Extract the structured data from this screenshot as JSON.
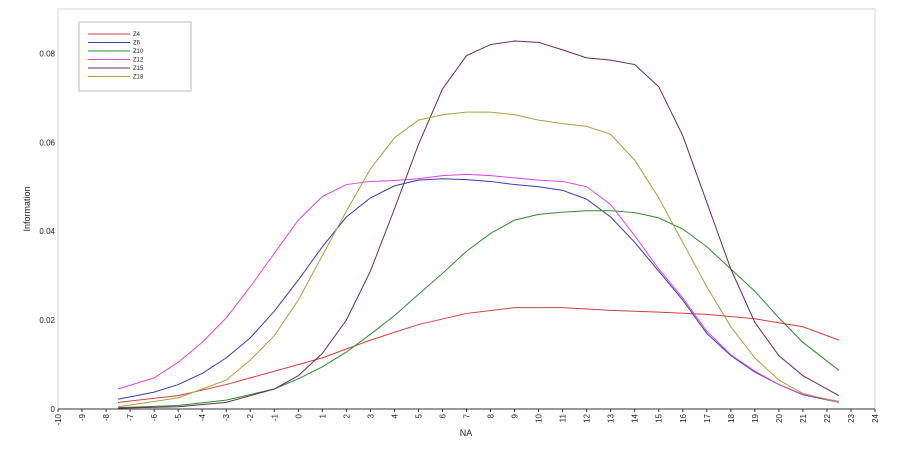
{
  "chart_data": {
    "type": "line",
    "title": "",
    "xlabel": "NA",
    "ylabel": "Information",
    "xlim": [
      -10,
      24
    ],
    "ylim": [
      0,
      0.09
    ],
    "x_ticks": [
      -10,
      -9,
      -8,
      -7,
      -6,
      -5,
      -4,
      -3,
      -2,
      -1,
      0,
      1,
      2,
      3,
      4,
      5,
      6,
      7,
      8,
      9,
      10,
      11,
      12,
      13,
      14,
      15,
      16,
      17,
      18,
      19,
      20,
      21,
      22,
      23,
      24
    ],
    "y_ticks": [
      0,
      0.02,
      0.04,
      0.06,
      0.08
    ],
    "y_tick_labels": [
      "0",
      "0.02",
      "0.04",
      "0.06",
      "0.08"
    ],
    "grid": false,
    "legend_position": "top-left",
    "series": [
      {
        "name": "Z4",
        "color": "#d04040",
        "x": [
          -7.5,
          -5,
          -3,
          -1,
          1,
          3,
          5,
          7,
          9,
          11,
          13,
          15,
          17,
          19,
          21,
          22.5
        ],
        "y": [
          0.0015,
          0.003,
          0.0055,
          0.0085,
          0.0115,
          0.0155,
          0.019,
          0.0215,
          0.0228,
          0.0228,
          0.0222,
          0.0218,
          0.0213,
          0.0203,
          0.0185,
          0.0155
        ]
      },
      {
        "name": "Z6",
        "color": "#3a3aaa",
        "x": [
          -7.5,
          -6,
          -5,
          -4,
          -3,
          -2,
          -1,
          0,
          1,
          2,
          3,
          4,
          5,
          6,
          7,
          8,
          9,
          10,
          11,
          12,
          13,
          14,
          15,
          16,
          17,
          18,
          19,
          20,
          21,
          22.5
        ],
        "y": [
          0.0022,
          0.0038,
          0.0055,
          0.008,
          0.0115,
          0.016,
          0.022,
          0.029,
          0.0365,
          0.0432,
          0.0475,
          0.0502,
          0.0515,
          0.0518,
          0.0516,
          0.0512,
          0.0505,
          0.05,
          0.0492,
          0.0472,
          0.0432,
          0.0375,
          0.031,
          0.0245,
          0.017,
          0.012,
          0.0083,
          0.0055,
          0.0032,
          0.0015
        ]
      },
      {
        "name": "Z10",
        "color": "#2e8b2e",
        "x": [
          -7.5,
          -5,
          -3,
          -1,
          0,
          1,
          2,
          3,
          4,
          5,
          6,
          7,
          8,
          9,
          10,
          11,
          12,
          13,
          14,
          15,
          16,
          17,
          18,
          19,
          20,
          21,
          22.5
        ],
        "y": [
          0.0003,
          0.0008,
          0.002,
          0.0045,
          0.0068,
          0.0095,
          0.0128,
          0.0168,
          0.021,
          0.0258,
          0.0305,
          0.0355,
          0.0395,
          0.0425,
          0.0438,
          0.0443,
          0.0446,
          0.0446,
          0.0442,
          0.043,
          0.0405,
          0.0365,
          0.0315,
          0.0265,
          0.0205,
          0.015,
          0.0087
        ]
      },
      {
        "name": "Z12",
        "color": "#dd44dd",
        "x": [
          -7.5,
          -6,
          -5,
          -4,
          -3,
          -2,
          -1,
          0,
          1,
          2,
          3,
          4,
          5,
          6,
          7,
          8,
          9,
          10,
          11,
          12,
          13,
          14,
          15,
          16,
          17,
          18,
          19,
          20,
          21,
          22.5
        ],
        "y": [
          0.0045,
          0.007,
          0.0105,
          0.015,
          0.0205,
          0.0275,
          0.035,
          0.0425,
          0.0478,
          0.0505,
          0.0512,
          0.0514,
          0.0518,
          0.0525,
          0.0528,
          0.0525,
          0.052,
          0.0515,
          0.0512,
          0.05,
          0.046,
          0.039,
          0.0315,
          0.025,
          0.0175,
          0.0122,
          0.0085,
          0.0055,
          0.0033,
          0.0017
        ]
      },
      {
        "name": "Z15",
        "color": "#6a2a5a",
        "x": [
          -7.5,
          -5,
          -3,
          -1,
          0,
          1,
          2,
          3,
          4,
          5,
          6,
          7,
          8,
          9,
          10,
          11,
          12,
          13,
          14,
          15,
          16,
          17,
          18,
          19,
          20,
          21,
          22.5
        ],
        "y": [
          0.0002,
          0.0005,
          0.0015,
          0.0045,
          0.0075,
          0.0125,
          0.02,
          0.031,
          0.045,
          0.0595,
          0.072,
          0.0795,
          0.082,
          0.0828,
          0.0825,
          0.0808,
          0.079,
          0.0785,
          0.0775,
          0.0725,
          0.0615,
          0.0465,
          0.0315,
          0.0195,
          0.012,
          0.0075,
          0.003
        ]
      },
      {
        "name": "Z18",
        "color": "#a8a040",
        "x": [
          -7.5,
          -5,
          -3,
          -2,
          -1,
          0,
          1,
          2,
          3,
          4,
          5,
          6,
          7,
          8,
          9,
          10,
          11,
          12,
          13,
          14,
          15,
          16,
          17,
          18,
          19,
          20,
          21,
          22.5
        ],
        "y": [
          0.0005,
          0.0025,
          0.0065,
          0.011,
          0.0165,
          0.0245,
          0.0345,
          0.0445,
          0.054,
          0.061,
          0.065,
          0.0662,
          0.0668,
          0.0668,
          0.0662,
          0.065,
          0.0642,
          0.0636,
          0.0618,
          0.056,
          0.0475,
          0.0375,
          0.0275,
          0.0185,
          0.0115,
          0.0065,
          0.0035,
          0.0015
        ]
      }
    ]
  }
}
